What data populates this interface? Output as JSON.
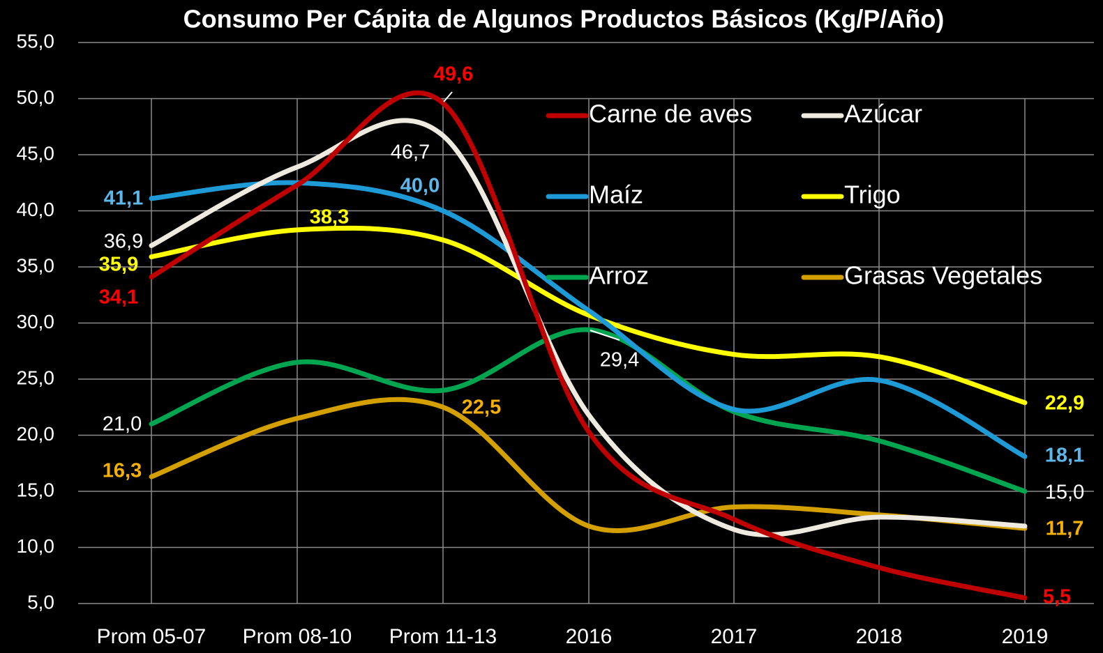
{
  "chart_data": {
    "type": "line",
    "title": "Consumo Per Cápita de Algunos Productos Básicos (Kg/P/Año)",
    "categories": [
      "Prom 05-07",
      "Prom 08-10",
      "Prom 11-13",
      "2016",
      "2017",
      "2018",
      "2019"
    ],
    "ylim": [
      5,
      55
    ],
    "yticks": [
      {
        "value": 5,
        "label": "5,0"
      },
      {
        "value": 10,
        "label": "10,0"
      },
      {
        "value": 15,
        "label": "15,0"
      },
      {
        "value": 20,
        "label": "20,0"
      },
      {
        "value": 25,
        "label": "25,0"
      },
      {
        "value": 30,
        "label": "30,0"
      },
      {
        "value": 35,
        "label": "35,0"
      },
      {
        "value": 40,
        "label": "40,0"
      },
      {
        "value": 45,
        "label": "45,0"
      },
      {
        "value": 50,
        "label": "50,0"
      },
      {
        "value": 55,
        "label": "55,0"
      }
    ],
    "grid": true,
    "legend": "upper right",
    "series": [
      {
        "name": "Carne de aves",
        "color": "#c00000",
        "label_color": "#ff0000",
        "values": [
          34.1,
          42.3,
          49.6,
          20.3,
          12.5,
          8.2,
          5.5
        ],
        "value_labels": [
          "34,1",
          null,
          "49,6",
          null,
          null,
          null,
          "5,5"
        ]
      },
      {
        "name": "Azúcar",
        "color": "#eeeae0",
        "label_color": "#ffffff",
        "values": [
          36.9,
          43.9,
          46.7,
          21.8,
          11.6,
          12.7,
          11.9
        ],
        "value_labels": [
          "36,9",
          null,
          "46,7",
          null,
          null,
          null,
          null
        ]
      },
      {
        "name": "Maíz",
        "color": "#1e9ad6",
        "label_color": "#5cb8ea",
        "values": [
          41.1,
          42.5,
          40.0,
          31.1,
          22.3,
          24.9,
          18.1
        ],
        "value_labels": [
          "41,1",
          null,
          "40,0",
          null,
          null,
          null,
          "18,1"
        ]
      },
      {
        "name": "Trigo",
        "color": "#ffff00",
        "label_color": "#ffff00",
        "values": [
          35.9,
          38.3,
          37.4,
          30.7,
          27.2,
          27.0,
          22.9
        ],
        "value_labels": [
          "35,9",
          "38,3",
          null,
          null,
          null,
          null,
          "22,9"
        ]
      },
      {
        "name": "Arroz",
        "color": "#00a550",
        "label_color": "#ffffff",
        "values": [
          21.0,
          26.5,
          24.0,
          29.4,
          22.1,
          19.5,
          15.0
        ],
        "value_labels": [
          "21,0",
          null,
          null,
          "29,4",
          null,
          null,
          "15,0"
        ]
      },
      {
        "name": "Grasas Vegetales",
        "color": "#d4a000",
        "label_color": "#f5b000",
        "values": [
          16.3,
          21.5,
          22.5,
          11.9,
          13.6,
          12.9,
          11.7
        ],
        "value_labels": [
          "16,3",
          null,
          "22,5",
          null,
          null,
          null,
          "11,7"
        ]
      }
    ]
  }
}
